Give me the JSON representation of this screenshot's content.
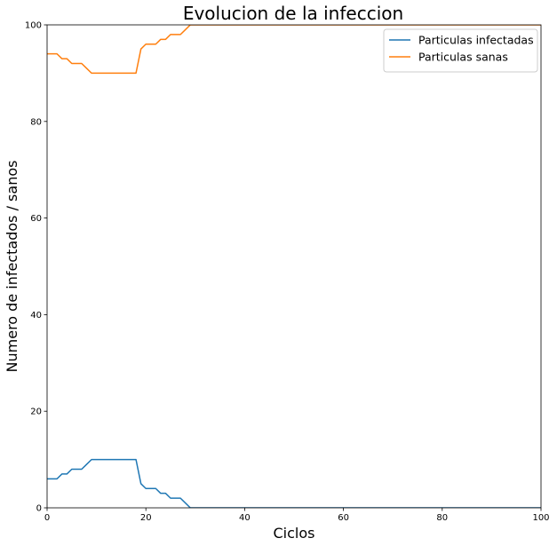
{
  "chart_data": {
    "type": "line",
    "title": "Evolucion de la infeccion",
    "xlabel": "Ciclos",
    "ylabel": "Numero de infectados / sanos",
    "xlim": [
      0,
      100
    ],
    "ylim": [
      0,
      100
    ],
    "xticks": [
      0,
      20,
      40,
      60,
      80,
      100
    ],
    "yticks": [
      0,
      20,
      40,
      60,
      80,
      100
    ],
    "grid": false,
    "legend_position": "top-right",
    "series": [
      {
        "name": "Particulas infectadas",
        "color": "#1f77b4",
        "x": [
          0,
          1,
          2,
          3,
          4,
          5,
          6,
          7,
          8,
          9,
          10,
          11,
          12,
          13,
          14,
          15,
          16,
          17,
          18,
          19,
          20,
          21,
          22,
          23,
          24,
          25,
          26,
          27,
          28,
          29,
          30,
          40,
          50,
          60,
          70,
          80,
          90,
          100
        ],
        "y": [
          6,
          6,
          6,
          7,
          7,
          8,
          8,
          8,
          9,
          10,
          10,
          10,
          10,
          10,
          10,
          10,
          10,
          10,
          10,
          5,
          4,
          4,
          4,
          3,
          3,
          2,
          2,
          2,
          1,
          0,
          0,
          0,
          0,
          0,
          0,
          0,
          0,
          0
        ]
      },
      {
        "name": "Particulas sanas",
        "color": "#ff7f0e",
        "x": [
          0,
          1,
          2,
          3,
          4,
          5,
          6,
          7,
          8,
          9,
          10,
          11,
          12,
          13,
          14,
          15,
          16,
          17,
          18,
          19,
          20,
          21,
          22,
          23,
          24,
          25,
          26,
          27,
          28,
          29,
          30,
          40,
          50,
          60,
          70,
          80,
          90,
          100
        ],
        "y": [
          94,
          94,
          94,
          93,
          93,
          92,
          92,
          92,
          91,
          90,
          90,
          90,
          90,
          90,
          90,
          90,
          90,
          90,
          90,
          95,
          96,
          96,
          96,
          97,
          97,
          98,
          98,
          98,
          99,
          100,
          100,
          100,
          100,
          100,
          100,
          100,
          100,
          100
        ]
      }
    ]
  }
}
